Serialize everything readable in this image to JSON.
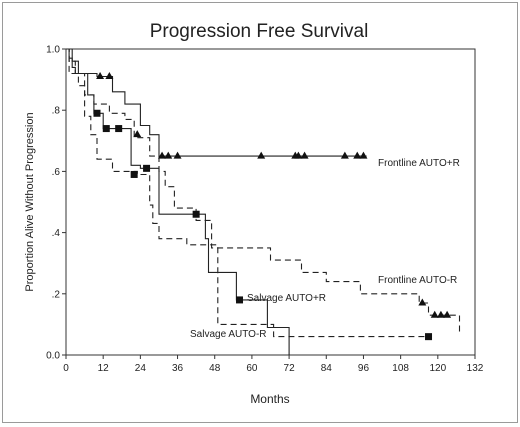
{
  "chart_data": {
    "type": "line",
    "title": "Progression Free Survival",
    "xlabel": "Months",
    "ylabel": "Proportion Alive Without Progression",
    "xlim": [
      0,
      132
    ],
    "ylim": [
      0,
      1
    ],
    "x_ticks": [
      "0",
      "12",
      "24",
      "36",
      "48",
      "60",
      "72",
      "84",
      "96",
      "108",
      "120",
      "132"
    ],
    "y_ticks": [
      "0.0",
      ".2",
      ".4",
      ".6",
      ".8",
      "1.0"
    ],
    "grid": false,
    "series": [
      {
        "name": "Frontline AUTO+R",
        "color": "#222222",
        "dash": "solid",
        "marker": "triangle",
        "points": [
          [
            0,
            1
          ],
          [
            1,
            1
          ],
          [
            1,
            0.97
          ],
          [
            2,
            0.97
          ],
          [
            2,
            0.94
          ],
          [
            3,
            0.94
          ],
          [
            3,
            0.92
          ],
          [
            10,
            0.92
          ],
          [
            10,
            0.91
          ],
          [
            15,
            0.91
          ],
          [
            15,
            0.86
          ],
          [
            19,
            0.86
          ],
          [
            19,
            0.82
          ],
          [
            24,
            0.82
          ],
          [
            24,
            0.75
          ],
          [
            27,
            0.75
          ],
          [
            27,
            0.72
          ],
          [
            30,
            0.72
          ],
          [
            30,
            0.65
          ],
          [
            97,
            0.65
          ]
        ],
        "censor": [
          [
            11,
            0.91
          ],
          [
            14,
            0.91
          ],
          [
            23,
            0.72
          ],
          [
            31,
            0.65
          ],
          [
            33,
            0.65
          ],
          [
            36,
            0.65
          ],
          [
            63,
            0.65
          ],
          [
            74,
            0.65
          ],
          [
            75,
            0.65
          ],
          [
            77,
            0.65
          ],
          [
            90,
            0.65
          ],
          [
            94,
            0.65
          ],
          [
            96,
            0.65
          ]
        ]
      },
      {
        "name": "Frontline AUTO-R",
        "color": "#222222",
        "dash": "dashed",
        "marker": "triangle",
        "points": [
          [
            0,
            1
          ],
          [
            1,
            1
          ],
          [
            1,
            0.96
          ],
          [
            3,
            0.96
          ],
          [
            3,
            0.92
          ],
          [
            6,
            0.92
          ],
          [
            6,
            0.85
          ],
          [
            9,
            0.85
          ],
          [
            9,
            0.82
          ],
          [
            14,
            0.82
          ],
          [
            14,
            0.79
          ],
          [
            19,
            0.79
          ],
          [
            19,
            0.77
          ],
          [
            22,
            0.77
          ],
          [
            22,
            0.71
          ],
          [
            27,
            0.71
          ],
          [
            27,
            0.65
          ],
          [
            30,
            0.65
          ],
          [
            30,
            0.6
          ],
          [
            32,
            0.6
          ],
          [
            32,
            0.55
          ],
          [
            35,
            0.55
          ],
          [
            35,
            0.48
          ],
          [
            42,
            0.48
          ],
          [
            42,
            0.44
          ],
          [
            47,
            0.44
          ],
          [
            47,
            0.35
          ],
          [
            66,
            0.35
          ],
          [
            66,
            0.31
          ],
          [
            76,
            0.31
          ],
          [
            76,
            0.27
          ],
          [
            84,
            0.27
          ],
          [
            84,
            0.24
          ],
          [
            95,
            0.24
          ],
          [
            95,
            0.2
          ],
          [
            114,
            0.2
          ],
          [
            114,
            0.17
          ],
          [
            117,
            0.17
          ],
          [
            117,
            0.13
          ],
          [
            127,
            0.13
          ],
          [
            127,
            0.07
          ]
        ],
        "censor": [
          [
            115,
            0.17
          ],
          [
            119,
            0.13
          ],
          [
            121,
            0.13
          ],
          [
            123,
            0.13
          ]
        ]
      },
      {
        "name": "Salvage AUTO+R",
        "color": "#222222",
        "dash": "solid",
        "marker": "square",
        "points": [
          [
            0,
            1
          ],
          [
            2,
            1
          ],
          [
            2,
            0.96
          ],
          [
            4,
            0.96
          ],
          [
            4,
            0.92
          ],
          [
            7,
            0.92
          ],
          [
            7,
            0.85
          ],
          [
            9,
            0.85
          ],
          [
            9,
            0.79
          ],
          [
            12,
            0.79
          ],
          [
            12,
            0.74
          ],
          [
            16,
            0.74
          ],
          [
            16,
            0.74
          ],
          [
            21,
            0.74
          ],
          [
            21,
            0.62
          ],
          [
            24,
            0.62
          ],
          [
            24,
            0.61
          ],
          [
            30,
            0.61
          ],
          [
            30,
            0.46
          ],
          [
            41,
            0.46
          ],
          [
            41,
            0.46
          ],
          [
            45,
            0.46
          ],
          [
            45,
            0.38
          ],
          [
            46,
            0.38
          ],
          [
            46,
            0.27
          ],
          [
            55,
            0.27
          ],
          [
            55,
            0.18
          ],
          [
            65,
            0.18
          ],
          [
            65,
            0.09
          ],
          [
            72,
            0.09
          ],
          [
            72,
            0
          ]
        ],
        "censor": [
          [
            10,
            0.79
          ],
          [
            13,
            0.74
          ],
          [
            17,
            0.74
          ],
          [
            26,
            0.61
          ],
          [
            42,
            0.46
          ],
          [
            56,
            0.18
          ]
        ]
      },
      {
        "name": "Salvage AUTO-R",
        "color": "#222222",
        "dash": "dashed",
        "marker": "square",
        "points": [
          [
            0,
            1
          ],
          [
            1,
            1
          ],
          [
            1,
            0.92
          ],
          [
            4,
            0.92
          ],
          [
            4,
            0.88
          ],
          [
            6,
            0.88
          ],
          [
            6,
            0.78
          ],
          [
            8,
            0.78
          ],
          [
            8,
            0.72
          ],
          [
            10,
            0.72
          ],
          [
            10,
            0.64
          ],
          [
            15,
            0.64
          ],
          [
            15,
            0.6
          ],
          [
            23,
            0.6
          ],
          [
            23,
            0.59
          ],
          [
            27,
            0.59
          ],
          [
            27,
            0.49
          ],
          [
            28,
            0.49
          ],
          [
            28,
            0.43
          ],
          [
            30,
            0.43
          ],
          [
            30,
            0.38
          ],
          [
            39,
            0.38
          ],
          [
            39,
            0.36
          ],
          [
            49,
            0.36
          ],
          [
            49,
            0.1
          ],
          [
            67,
            0.1
          ],
          [
            67,
            0.06
          ],
          [
            118,
            0.06
          ]
        ],
        "censor": [
          [
            22,
            0.59
          ],
          [
            117,
            0.06
          ]
        ]
      }
    ]
  }
}
